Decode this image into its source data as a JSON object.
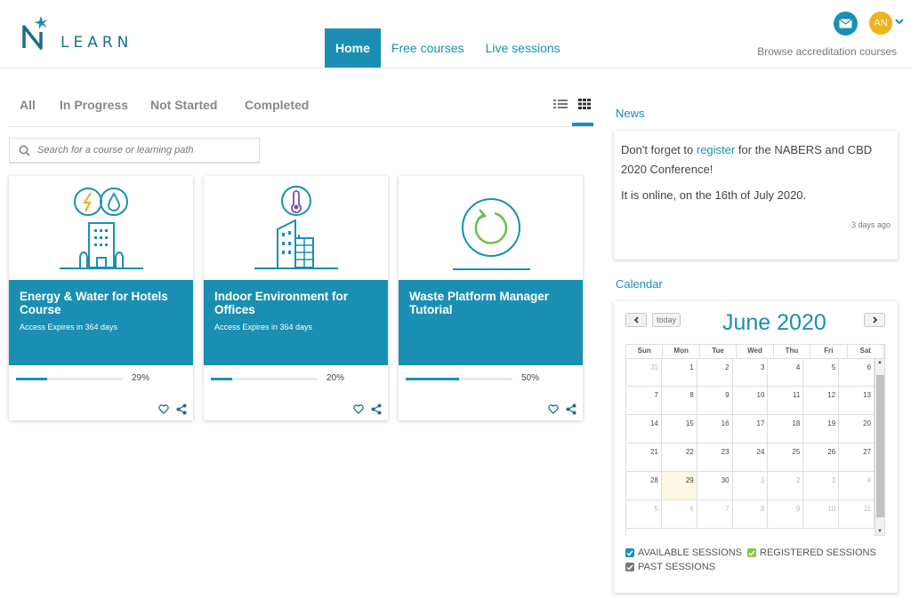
{
  "header": {
    "logo_text": "LEARN",
    "nav": [
      {
        "label": "Home",
        "active": true
      },
      {
        "label": "Free courses",
        "active": false
      },
      {
        "label": "Live sessions",
        "active": false
      }
    ],
    "avatar_initials": "AN",
    "browse_link": "Browse accreditation courses",
    "accent_color": "#1a8fb3"
  },
  "filters": {
    "tabs": [
      "All",
      "In Progress",
      "Not Started",
      "Completed"
    ],
    "view_modes": [
      "list-icon",
      "grid-icon"
    ],
    "active_view": "grid"
  },
  "search": {
    "placeholder": "Search for a course or learning path"
  },
  "courses": [
    {
      "title": "Energy & Water for Hotels Course",
      "expires": "Access Expires in 364 days",
      "progress": 0.29,
      "progress_label": "29%",
      "icon": "hotel-energy-water-icon"
    },
    {
      "title": "Indoor Environment for Offices",
      "expires": "Access Expires in 364 days",
      "progress": 0.2,
      "progress_label": "20%",
      "icon": "office-thermometer-icon"
    },
    {
      "title": "Waste Platform Manager Tutorial",
      "expires": "",
      "progress": 0.5,
      "progress_label": "50%",
      "icon": "recycle-circle-icon"
    }
  ],
  "news": {
    "title": "News",
    "line1_pre": "Don't forget to ",
    "line1_link": "register",
    "line1_post": " for the NABERS and CBD 2020 Conference!",
    "line2": "It is online, on the 16th of July 2020.",
    "time": "3 days ago"
  },
  "calendar": {
    "title": "Calendar",
    "month_label": "June 2020",
    "today_button": "today",
    "days": [
      "Sun",
      "Mon",
      "Tue",
      "Wed",
      "Thu",
      "Fri",
      "Sat"
    ],
    "weeks": [
      [
        "31",
        "1",
        "2",
        "3",
        "4",
        "5",
        "6"
      ],
      [
        "7",
        "8",
        "9",
        "10",
        "11",
        "12",
        "13"
      ],
      [
        "14",
        "15",
        "16",
        "17",
        "18",
        "19",
        "20"
      ],
      [
        "21",
        "22",
        "23",
        "24",
        "25",
        "26",
        "27"
      ],
      [
        "28",
        "29",
        "30",
        "1",
        "2",
        "3",
        "4"
      ],
      [
        "5",
        "6",
        "7",
        "8",
        "9",
        "10",
        "11"
      ]
    ],
    "today_date": "29",
    "legend": [
      {
        "label": "AVAILABLE SESSIONS",
        "color": "#1a8fb3"
      },
      {
        "label": "REGISTERED SESSIONS",
        "color": "#8cc63f"
      },
      {
        "label": "PAST SESSIONS",
        "color": "#777777"
      }
    ]
  }
}
